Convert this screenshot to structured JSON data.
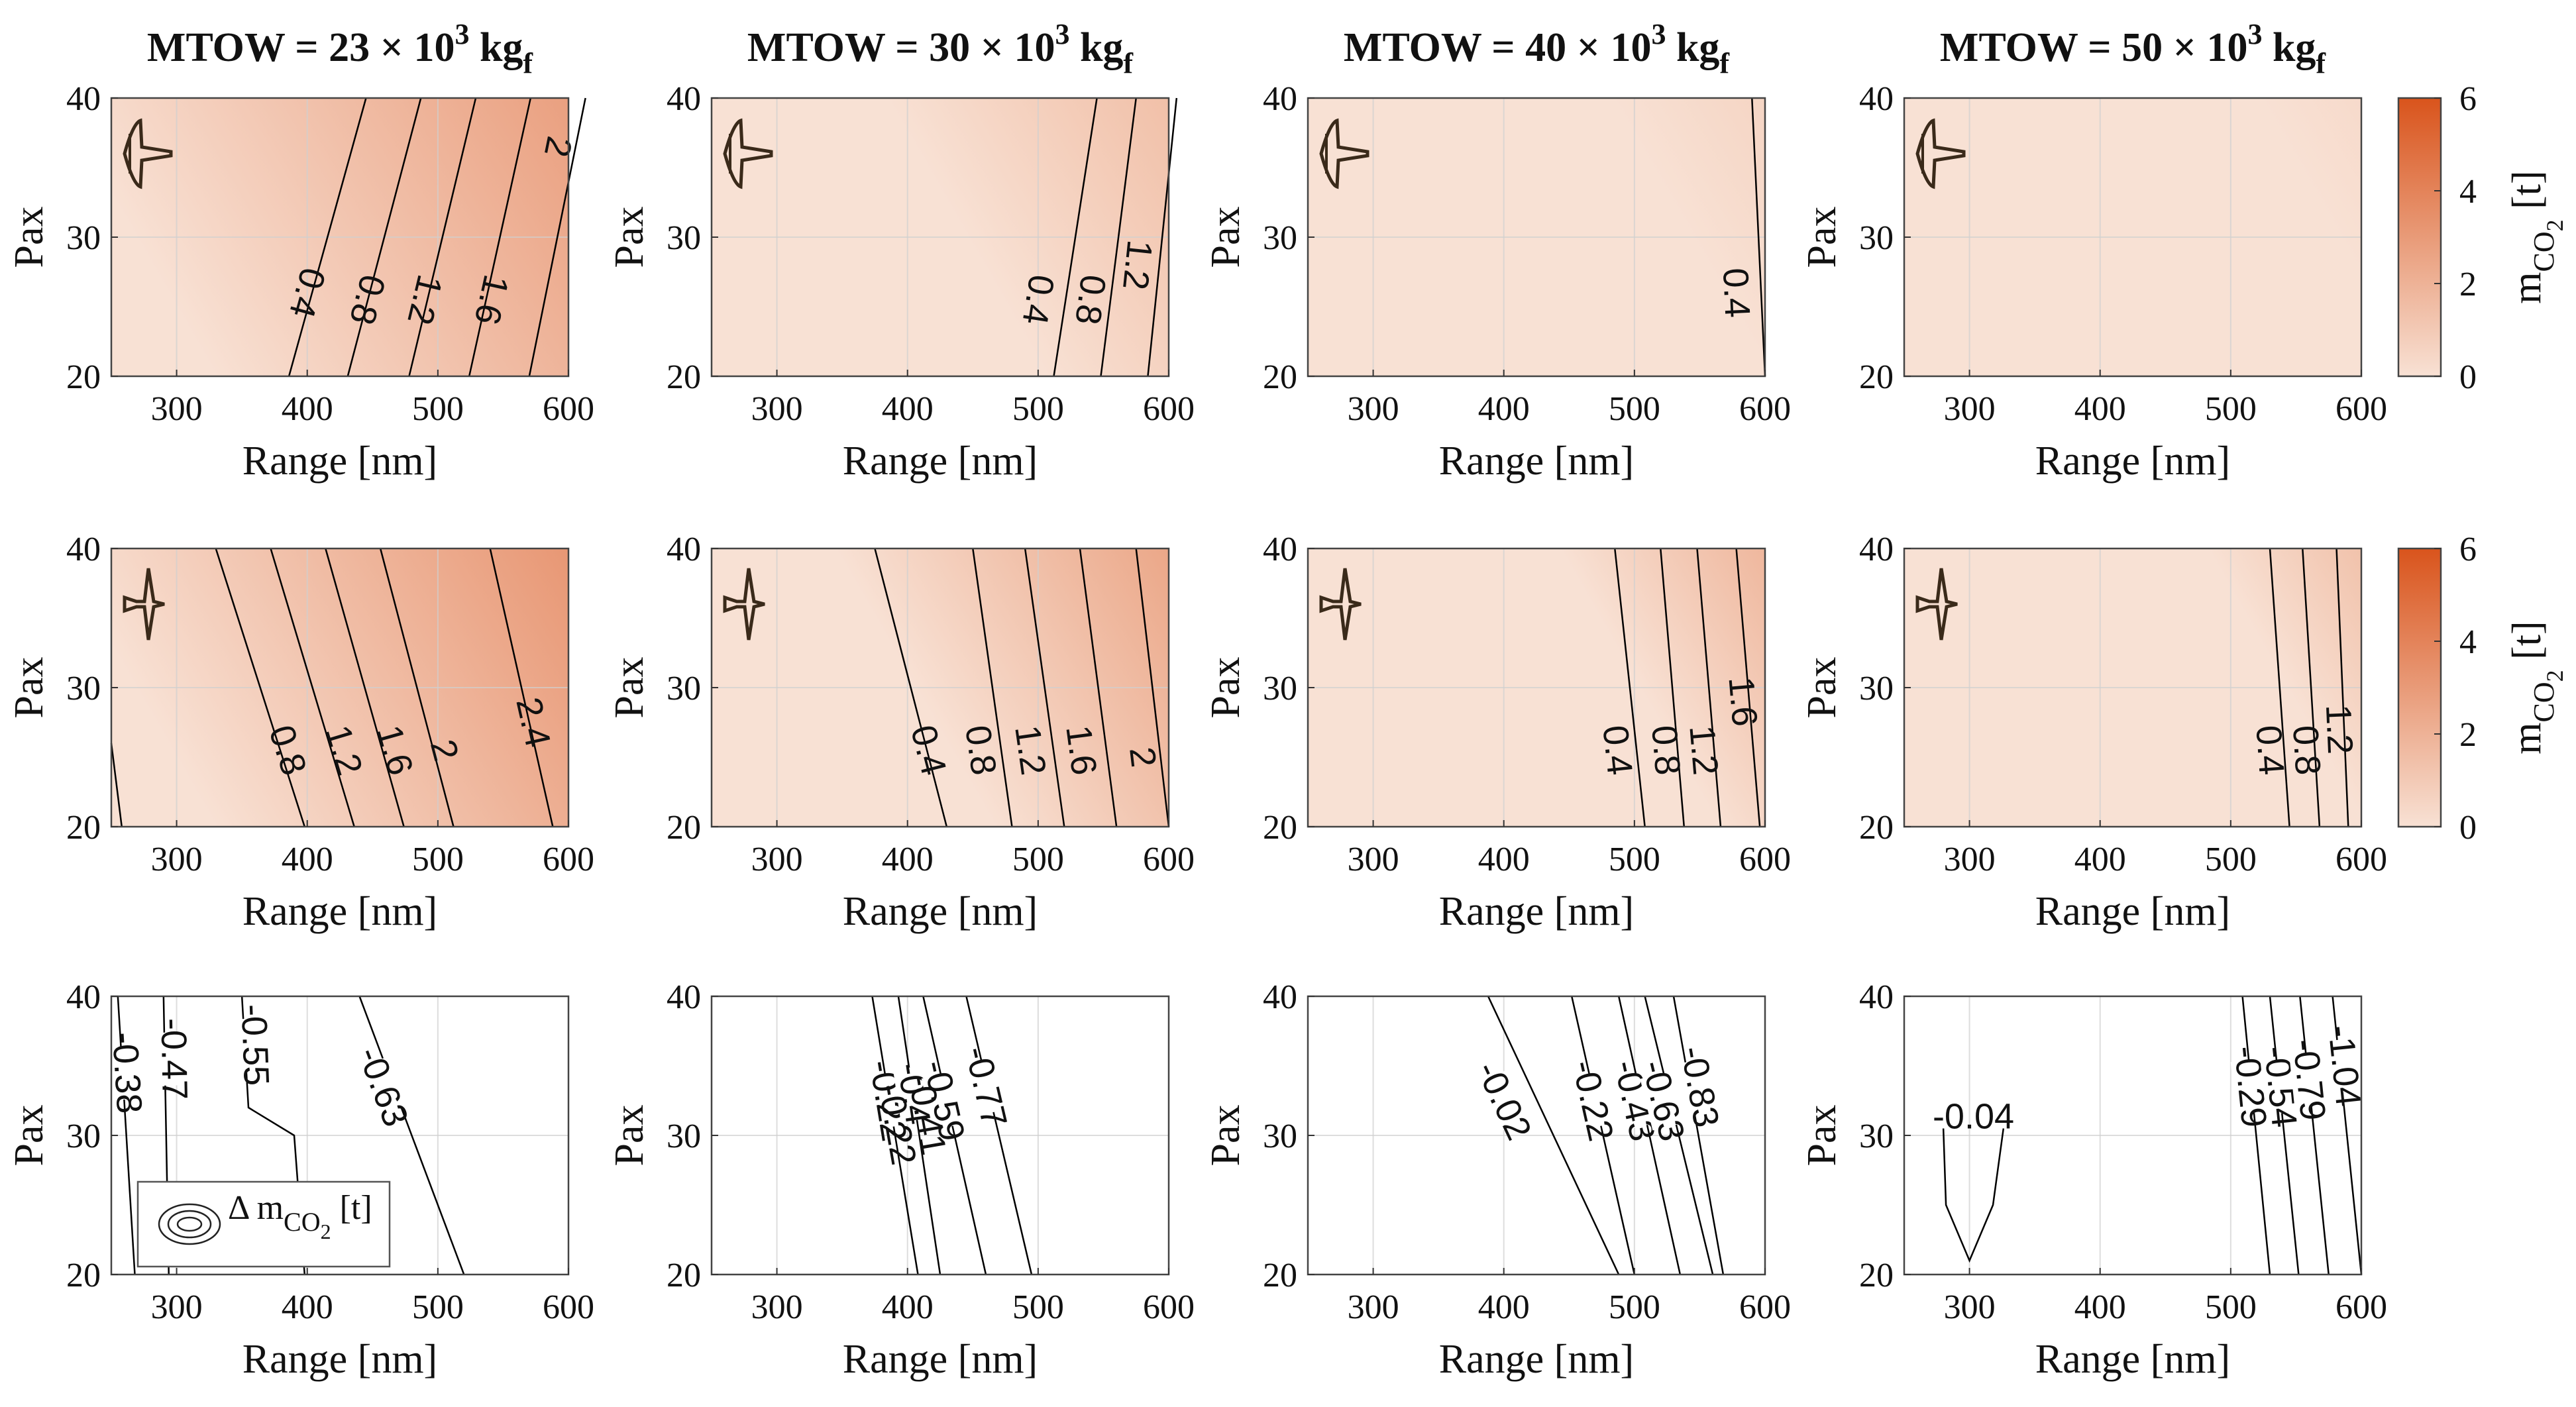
{
  "figure": {
    "columns": [
      {
        "title_prefix": "MTOW = 23 × 10",
        "title_exp": "3",
        "title_unit": " kg",
        "title_sub": "f"
      },
      {
        "title_prefix": "MTOW = 30 × 10",
        "title_exp": "3",
        "title_unit": " kg",
        "title_sub": "f"
      },
      {
        "title_prefix": "MTOW = 40 × 10",
        "title_exp": "3",
        "title_unit": " kg",
        "title_sub": "f"
      },
      {
        "title_prefix": "MTOW = 50 × 10",
        "title_exp": "3",
        "title_unit": " kg",
        "title_sub": "f"
      }
    ],
    "colorbars": [
      {
        "label_main": "m",
        "label_sub": "CO",
        "label_sub2": "2",
        "label_unit": " [t]",
        "ticks": [
          0,
          2,
          4,
          6
        ],
        "range": [
          0,
          6
        ]
      },
      {
        "label_main": "m",
        "label_sub": "CO",
        "label_sub2": "2",
        "label_unit": " [t]",
        "ticks": [
          0,
          2,
          4,
          6
        ],
        "range": [
          0,
          6
        ]
      }
    ],
    "legend": {
      "label_main": "Δ m",
      "label_sub": "CO",
      "label_sub2": "2",
      "label_unit": " [t]"
    },
    "colors": {
      "base": "#f8e1d4",
      "max": "#d9541c",
      "line": "#000000",
      "grid": "#d0d0d0"
    }
  },
  "chart_data": [
    {
      "type": "contour",
      "row": 1,
      "col": 1,
      "xlabel": "Range [nm]",
      "ylabel": "Pax",
      "xlim": [
        250,
        600
      ],
      "ylim": [
        20,
        40
      ],
      "xticks": [
        300,
        400,
        500,
        600
      ],
      "yticks": [
        20,
        30,
        40
      ],
      "icon": "aircraft-icon-1",
      "lines": [
        {
          "level": "0.4",
          "x40": 445,
          "x20": 386,
          "lx": 400,
          "ly": 26
        },
        {
          "level": "0.8",
          "x40": 487,
          "x20": 431,
          "lx": 446,
          "ly": 25.5
        },
        {
          "level": "1.2",
          "x40": 529,
          "x20": 478,
          "lx": 490,
          "ly": 25.5
        },
        {
          "level": "1.6",
          "x40": 571,
          "x20": 524,
          "lx": 541,
          "ly": 25.5
        },
        {
          "level": "2",
          "x40": 613,
          "x20": 570,
          "lx": 592,
          "ly": 36.5
        }
      ],
      "max_value": 2.9,
      "gradient_start": 0.0
    },
    {
      "type": "contour",
      "row": 1,
      "col": 2,
      "xlabel": "Range [nm]",
      "ylabel": "Pax",
      "xlim": [
        250,
        600
      ],
      "ylim": [
        20,
        40
      ],
      "xticks": [
        300,
        400,
        500,
        600
      ],
      "yticks": [
        20,
        30,
        40
      ],
      "icon": "aircraft-icon-1",
      "lines": [
        {
          "level": "0.4",
          "x40": 545,
          "x20": 512,
          "lx": 500,
          "ly": 25.5
        },
        {
          "level": "0.8",
          "x40": 575,
          "x20": 548,
          "lx": 540,
          "ly": 25.5
        },
        {
          "level": "1.2",
          "x40": 606,
          "x20": 584,
          "lx": 576,
          "ly": 28
        }
      ],
      "max_value": 1.5,
      "gradient_start": 0.45
    },
    {
      "type": "contour",
      "row": 1,
      "col": 3,
      "xlabel": "Range [nm]",
      "ylabel": "Pax",
      "xlim": [
        250,
        600
      ],
      "ylim": [
        20,
        40
      ],
      "xticks": [
        300,
        400,
        500,
        600
      ],
      "yticks": [
        20,
        30,
        40
      ],
      "icon": "aircraft-icon-1",
      "lines": [
        {
          "level": "0.4",
          "x40": 590,
          "x20": 600,
          "lx": 578,
          "ly": 26
        }
      ],
      "max_value": 0.55,
      "gradient_start": 0.7
    },
    {
      "type": "contour",
      "row": 1,
      "col": 4,
      "xlabel": "Range [nm]",
      "ylabel": "Pax",
      "xlim": [
        250,
        600
      ],
      "ylim": [
        20,
        40
      ],
      "xticks": [
        300,
        400,
        500,
        600
      ],
      "yticks": [
        20,
        30,
        40
      ],
      "icon": "aircraft-icon-1",
      "lines": [],
      "max_value": 0.3,
      "gradient_start": 0.8
    },
    {
      "type": "contour",
      "row": 2,
      "col": 1,
      "xlabel": "Range [nm]",
      "ylabel": "Pax",
      "xlim": [
        250,
        600
      ],
      "ylim": [
        20,
        40
      ],
      "xticks": [
        300,
        400,
        500,
        600
      ],
      "yticks": [
        20,
        30,
        40
      ],
      "icon": "aircraft-icon-2",
      "lines": [
        {
          "level": "0.8",
          "x40": 330,
          "x20": 398,
          "lx": 385,
          "ly": 25.5
        },
        {
          "level": "1.2",
          "x40": 372,
          "x20": 436,
          "lx": 428,
          "ly": 25.5
        },
        {
          "level": "1.6",
          "x40": 414,
          "x20": 474,
          "lx": 467,
          "ly": 25.5
        },
        {
          "level": "2",
          "x40": 456,
          "x20": 512,
          "lx": 505,
          "ly": 25.5
        },
        {
          "level": "2.4",
          "x40": 540,
          "x20": 588,
          "lx": 573,
          "ly": 27.5
        }
      ],
      "max_value": 3.3,
      "gradient_start": 0.0,
      "edge_line": {
        "x40": 250,
        "x20": 258,
        "y_top": 26
      }
    },
    {
      "type": "contour",
      "row": 2,
      "col": 2,
      "xlabel": "Range [nm]",
      "ylabel": "Pax",
      "xlim": [
        250,
        600
      ],
      "ylim": [
        20,
        40
      ],
      "xticks": [
        300,
        400,
        500,
        600
      ],
      "yticks": [
        20,
        30,
        40
      ],
      "icon": "aircraft-icon-2",
      "lines": [
        {
          "level": "0.4",
          "x40": 375,
          "x20": 430,
          "lx": 416,
          "ly": 25.5
        },
        {
          "level": "0.8",
          "x40": 450,
          "x20": 480,
          "lx": 456,
          "ly": 25.5
        },
        {
          "level": "1.2",
          "x40": 490,
          "x20": 520,
          "lx": 494,
          "ly": 25.5
        },
        {
          "level": "1.6",
          "x40": 532,
          "x20": 560,
          "lx": 533,
          "ly": 25.5
        },
        {
          "level": "2",
          "x40": 575,
          "x20": 600,
          "lx": 580,
          "ly": 25
        }
      ],
      "max_value": 2.6,
      "gradient_start": 0.35
    },
    {
      "type": "contour",
      "row": 2,
      "col": 3,
      "xlabel": "Range [nm]",
      "ylabel": "Pax",
      "xlim": [
        250,
        600
      ],
      "ylim": [
        20,
        40
      ],
      "xticks": [
        300,
        400,
        500,
        600
      ],
      "yticks": [
        20,
        30,
        40
      ],
      "icon": "aircraft-icon-2",
      "lines": [
        {
          "level": "0.4",
          "x40": 485,
          "x20": 508,
          "lx": 487,
          "ly": 25.5
        },
        {
          "level": "0.8",
          "x40": 520,
          "x20": 538,
          "lx": 524,
          "ly": 25.5
        },
        {
          "level": "1.2",
          "x40": 548,
          "x20": 566,
          "lx": 553,
          "ly": 25.5
        },
        {
          "level": "1.6",
          "x40": 578,
          "x20": 596,
          "lx": 583,
          "ly": 29
        }
      ],
      "max_value": 1.9,
      "gradient_start": 0.6
    },
    {
      "type": "contour",
      "row": 2,
      "col": 4,
      "xlabel": "Range [nm]",
      "ylabel": "Pax",
      "xlim": [
        250,
        600
      ],
      "ylim": [
        20,
        40
      ],
      "xticks": [
        300,
        400,
        500,
        600
      ],
      "yticks": [
        20,
        30,
        40
      ],
      "icon": "aircraft-icon-2",
      "lines": [
        {
          "level": "0.4",
          "x40": 530,
          "x20": 545,
          "lx": 530,
          "ly": 25.5
        },
        {
          "level": "0.8",
          "x40": 555,
          "x20": 568,
          "lx": 558,
          "ly": 25.5
        },
        {
          "level": "1.2",
          "x40": 581,
          "x20": 590,
          "lx": 583,
          "ly": 27
        }
      ],
      "max_value": 1.4,
      "gradient_start": 0.7
    },
    {
      "type": "contour-delta",
      "row": 3,
      "col": 1,
      "xlabel": "Range [nm]",
      "ylabel": "Pax",
      "xlim": [
        250,
        600
      ],
      "ylim": [
        20,
        40
      ],
      "xticks": [
        300,
        400,
        500,
        600
      ],
      "yticks": [
        20,
        30,
        40
      ],
      "legend": true,
      "lines": [
        {
          "level": "-0.38",
          "x40": 255,
          "x20": 268,
          "lx": 262,
          "ly": 34.5
        },
        {
          "level": "-0.47",
          "x40": 290,
          "x20": 294,
          "lx": 298,
          "ly": 35.5
        },
        {
          "level": "-0.55",
          "x40": 350,
          "x20": 358,
          "lx": 360,
          "ly": 36.5,
          "kink": {
            "x": 390,
            "y": 30
          }
        },
        {
          "level": "-0.63",
          "x40": 440,
          "x20": 520,
          "lx": 458,
          "ly": 33.5
        }
      ]
    },
    {
      "type": "contour-delta",
      "row": 3,
      "col": 2,
      "xlabel": "Range [nm]",
      "ylabel": "Pax",
      "xlim": [
        250,
        600
      ],
      "ylim": [
        20,
        40
      ],
      "xticks": [
        300,
        400,
        500,
        600
      ],
      "yticks": [
        20,
        30,
        40
      ],
      "lines": [
        {
          "level": "-0.22",
          "x40": 373,
          "x20": 408,
          "lx": 385,
          "ly": 32.5
        },
        {
          "level": "-0.4",
          "x40": 393,
          "x20": 425,
          "lx": 405,
          "ly": 33
        },
        {
          "level": "-0.59",
          "x40": 412,
          "x20": 460,
          "lx": 428,
          "ly": 32.5
        },
        {
          "level": "-0.77",
          "x40": 445,
          "x20": 495,
          "lx": 460,
          "ly": 33.5
        }
      ],
      "extra_labels": [
        {
          "level": "-0.41",
          "lx": 415,
          "ly": 31.5
        },
        {
          "level": "-0.22",
          "lx": 392,
          "ly": 30.8
        }
      ]
    },
    {
      "type": "contour-delta",
      "row": 3,
      "col": 3,
      "xlabel": "Range [nm]",
      "ylabel": "Pax",
      "xlim": [
        250,
        600
      ],
      "ylim": [
        20,
        40
      ],
      "xticks": [
        300,
        400,
        500,
        600
      ],
      "yticks": [
        20,
        30,
        40
      ],
      "lines": [
        {
          "level": "-0.02",
          "x40": 388,
          "x20": 488,
          "lx": 400,
          "ly": 32.5
        },
        {
          "level": "-0.22",
          "x40": 452,
          "x20": 500,
          "lx": 468,
          "ly": 32.5
        },
        {
          "level": "-0.43",
          "x40": 488,
          "x20": 535,
          "lx": 500,
          "ly": 32.5
        },
        {
          "level": "-0.63",
          "x40": 508,
          "x20": 560,
          "lx": 522,
          "ly": 32.5
        },
        {
          "level": "-0.83",
          "x40": 530,
          "x20": 568,
          "lx": 550,
          "ly": 33.5
        }
      ]
    },
    {
      "type": "contour-delta",
      "row": 3,
      "col": 4,
      "xlabel": "Range [nm]",
      "ylabel": "Pax",
      "xlim": [
        250,
        600
      ],
      "ylim": [
        20,
        40
      ],
      "xticks": [
        300,
        400,
        500,
        600
      ],
      "yticks": [
        20,
        30,
        40
      ],
      "lines": [
        {
          "level": "-0.29",
          "x40": 509,
          "x20": 530,
          "lx": 515,
          "ly": 33.5
        },
        {
          "level": "-0.54",
          "x40": 530,
          "x20": 552,
          "lx": 538,
          "ly": 33.5
        },
        {
          "level": "-0.79",
          "x40": 553,
          "x20": 575,
          "lx": 560,
          "ly": 34
        },
        {
          "level": "-1.04",
          "x40": 578,
          "x20": 600,
          "lx": 587,
          "ly": 35
        }
      ],
      "loop": {
        "level": "-0.04",
        "points": [
          [
            280,
            30.5
          ],
          [
            282,
            25
          ],
          [
            300,
            21
          ],
          [
            318,
            25
          ],
          [
            326,
            30.5
          ]
        ],
        "lx": 303,
        "ly": 30.5
      }
    }
  ]
}
